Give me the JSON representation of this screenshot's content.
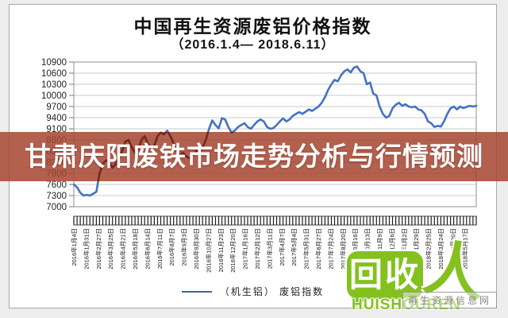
{
  "page": {
    "background": "#ededed"
  },
  "chart_data": {
    "type": "line",
    "title": "中国再生资源废铝价格指数",
    "subtitle": "（2016.1.4— 2018.6.11）",
    "legend_label": "（机生铝） 废铝指数",
    "legend_position": "bottom",
    "grid": true,
    "line_color": "#4472c4",
    "ylim": [
      7000,
      10900
    ],
    "yticks": [
      10900,
      10600,
      10300,
      10000,
      9700,
      9400,
      9100,
      8800,
      8500,
      8200,
      7900,
      7600,
      7300,
      7000
    ],
    "x_labels": [
      "2016年1月4日",
      "2016年1月31日",
      "2016年2月27日",
      "2016年3月25日",
      "2016年4月21日",
      "2016年5月18日",
      "2016年6月14日",
      "2016年7月11日",
      "2016年8月7日",
      "2016年9月3日",
      "2016年9月30日",
      "2016年10月27日",
      "2016年11月23日",
      "2016年12月20日",
      "2017年1月16日",
      "2017年2月12日",
      "2017年3月11日",
      "2017年4月7日",
      "2017年5月4日",
      "2017年5月31日",
      "2017年6月27日",
      "2017年7月24日",
      "2017年8月20日",
      "2017年9月16日",
      "2017年10月13日",
      "2017年11月9日",
      "2017年12月6日",
      "2018年1月2日",
      "2018年1月29日",
      "2018年2月25日",
      "2018年3月24日",
      "2018年4月20日",
      "2018年5月17日"
    ],
    "x_label_interval_days": 27,
    "x_span_days": 889,
    "series": [
      {
        "name": "（机生铝） 废铝指数",
        "values": [
          7600,
          7520,
          7380,
          7300,
          7320,
          7300,
          7350,
          7400,
          7900,
          8150,
          8250,
          8200,
          8050,
          8150,
          8300,
          8500,
          8750,
          8800,
          8600,
          8450,
          8550,
          8800,
          8900,
          8700,
          8550,
          8650,
          8900,
          9000,
          8950,
          9050,
          8900,
          8700,
          8500,
          8400,
          8450,
          8350,
          8300,
          8400,
          8500,
          8450,
          8600,
          8800,
          9100,
          9325,
          9200,
          9110,
          9390,
          9350,
          9150,
          9000,
          9050,
          9150,
          9200,
          9250,
          9150,
          9100,
          9200,
          9300,
          9350,
          9300,
          9150,
          9100,
          9120,
          9200,
          9300,
          9380,
          9300,
          9350,
          9450,
          9500,
          9550,
          9500,
          9560,
          9620,
          9580,
          9640,
          9700,
          9800,
          9950,
          10150,
          10300,
          10420,
          10380,
          10540,
          10650,
          10700,
          10620,
          10750,
          10780,
          10650,
          10600,
          10300,
          10350,
          10050,
          10000,
          9700,
          9500,
          9400,
          9450,
          9650,
          9750,
          9800,
          9720,
          9760,
          9700,
          9680,
          9700,
          9620,
          9600,
          9500,
          9300,
          9250,
          9150,
          9180,
          9160,
          9300,
          9500,
          9650,
          9700,
          9620,
          9700,
          9660,
          9690,
          9720,
          9700,
          9720
        ]
      }
    ]
  },
  "overlay": {
    "text": "甘肃庆阳废铁市场走势分析与行情预测",
    "band_color": "rgba(166,68,48,0.85)",
    "text_color": "#ffffff",
    "hidden_line_color": "#6b2114"
  },
  "logo": {
    "bubble_text": "回收",
    "person_char": "人",
    "latin_text": "HUISHOUREN",
    "site_text": "再生资源信息网",
    "green": "#84c11e"
  }
}
